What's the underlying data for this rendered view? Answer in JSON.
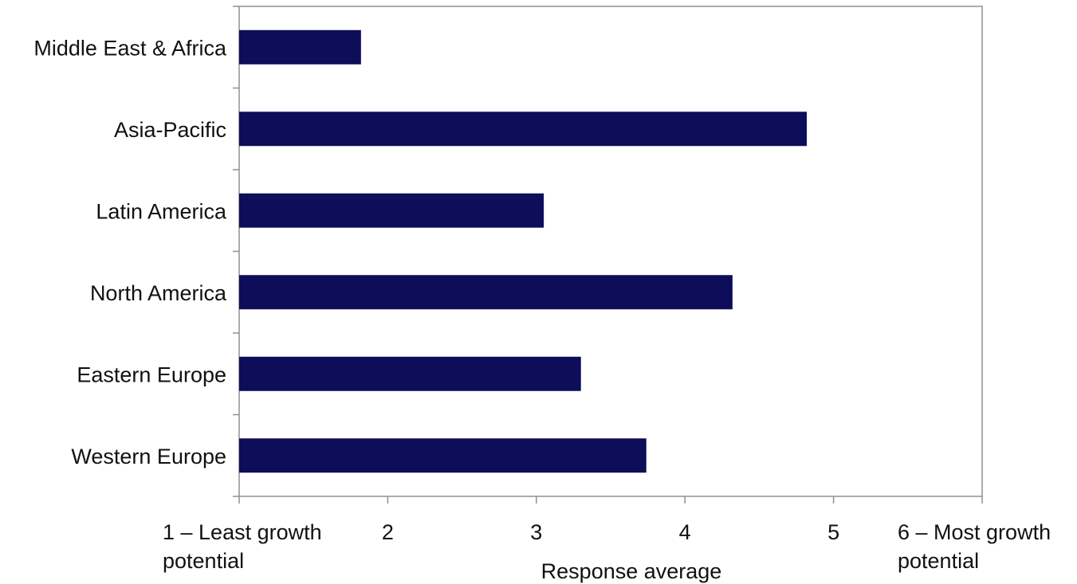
{
  "chart_data": {
    "type": "bar",
    "orientation": "horizontal",
    "categories": [
      "Middle East & Africa",
      "Asia-Pacific",
      "Latin America",
      "North America",
      "Eastern Europe",
      "Western Europe"
    ],
    "values": [
      1.82,
      4.82,
      3.05,
      4.32,
      3.3,
      3.74
    ],
    "xlabel": "Response average",
    "ylabel": "",
    "title": "",
    "xlim": [
      1,
      6
    ],
    "x_ticks": [
      1,
      2,
      3,
      4,
      5,
      6
    ],
    "x_tick_labels": [
      [
        "1 – Least growth",
        "potential"
      ],
      [
        "2"
      ],
      [
        "3"
      ],
      [
        "4"
      ],
      [
        "5"
      ],
      [
        "6 – Most growth",
        "potential"
      ]
    ],
    "bar_color": "#0d0d5a",
    "axis_color": "#909090",
    "grid": false,
    "legend": false
  }
}
